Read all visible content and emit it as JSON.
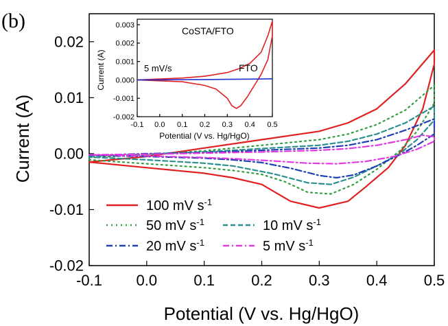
{
  "panel_label": "(b)",
  "chart_data": [
    {
      "type": "line",
      "title": "",
      "xlabel": "Potential (V vs. Hg/HgO)",
      "ylabel": "Current (A)",
      "xlim": [
        -0.1,
        0.5
      ],
      "ylim": [
        -0.02,
        0.025
      ],
      "x_ticks": [
        -0.1,
        0.0,
        0.1,
        0.2,
        0.3,
        0.4,
        0.5
      ],
      "x_tick_labels": [
        "-0.1",
        "0.0",
        "0.1",
        "0.2",
        "0.3",
        "0.4",
        "0.5"
      ],
      "y_ticks": [
        -0.02,
        -0.01,
        0.0,
        0.01,
        0.02
      ],
      "y_tick_labels": [
        "-0.02",
        "-0.01",
        "0.00",
        "0.01",
        "0.02"
      ],
      "legend": {
        "placement": "bottom-left",
        "entries": [
          {
            "series": 0,
            "label": "100 mV s",
            "sup": "-1"
          },
          {
            "series": 1,
            "label": "50 mV s",
            "sup": "-1"
          },
          {
            "series": 2,
            "label": "10 mV s",
            "sup": "-1"
          },
          {
            "series": 3,
            "label": "20 mV s",
            "sup": "-1"
          },
          {
            "series": 4,
            "label": "5 mV s",
            "sup": "-1"
          }
        ]
      },
      "series": [
        {
          "name": "100 mV s-1",
          "color": "#e02020",
          "dash": "solid",
          "x": [
            -0.1,
            0.0,
            0.1,
            0.2,
            0.3,
            0.35,
            0.4,
            0.45,
            0.5,
            0.5,
            0.48,
            0.45,
            0.42,
            0.38,
            0.35,
            0.3,
            0.25,
            0.2,
            0.15,
            0.1,
            0.0,
            -0.1
          ],
          "y": [
            -0.0015,
            -0.0005,
            0.001,
            0.0025,
            0.004,
            0.0055,
            0.008,
            0.0125,
            0.0185,
            0.016,
            0.008,
            0.0015,
            -0.0025,
            -0.006,
            -0.0085,
            -0.0097,
            -0.0085,
            -0.0055,
            -0.0043,
            -0.0035,
            -0.0025,
            -0.0015
          ]
        },
        {
          "name": "50 mV s-1",
          "color": "#2e9e3e",
          "dash": "dotted",
          "x": [
            -0.1,
            0.0,
            0.1,
            0.2,
            0.3,
            0.35,
            0.4,
            0.45,
            0.5,
            0.5,
            0.47,
            0.44,
            0.4,
            0.36,
            0.32,
            0.28,
            0.24,
            0.2,
            0.15,
            0.1,
            0.0,
            -0.1
          ],
          "y": [
            -0.0007,
            -0.0002,
            0.0005,
            0.0015,
            0.0025,
            0.0035,
            0.0052,
            0.0078,
            0.0122,
            0.009,
            0.004,
            0.0005,
            -0.0028,
            -0.0055,
            -0.0072,
            -0.0069,
            -0.005,
            -0.0037,
            -0.003,
            -0.0025,
            -0.0018,
            -0.0011
          ]
        },
        {
          "name": "10 mV s-1",
          "color": "#2a8f8f",
          "dash": "dashed",
          "x": [
            -0.1,
            0.0,
            0.1,
            0.2,
            0.3,
            0.35,
            0.4,
            0.45,
            0.5,
            0.5,
            0.47,
            0.44,
            0.4,
            0.36,
            0.32,
            0.28,
            0.22,
            0.15,
            0.1,
            0.0,
            -0.1
          ],
          "y": [
            -0.0004,
            -0.0001,
            0.0003,
            0.0009,
            0.0015,
            0.0022,
            0.0035,
            0.0055,
            0.0085,
            0.006,
            0.0025,
            0.0,
            -0.0022,
            -0.0042,
            -0.0055,
            -0.0052,
            -0.0036,
            -0.0022,
            -0.0017,
            -0.0011,
            -0.0006
          ]
        },
        {
          "name": "20 mV s-1",
          "color": "#1f3fb5",
          "dash": "dashdot",
          "x": [
            -0.1,
            0.0,
            0.1,
            0.2,
            0.3,
            0.35,
            0.4,
            0.45,
            0.5,
            0.5,
            0.47,
            0.44,
            0.4,
            0.36,
            0.33,
            0.3,
            0.25,
            0.2,
            0.15,
            0.1,
            0.0,
            -0.1
          ],
          "y": [
            -0.0003,
            0.0,
            0.0002,
            0.0006,
            0.001,
            0.0015,
            0.0025,
            0.0042,
            0.0062,
            0.0035,
            0.0015,
            -0.0002,
            -0.0022,
            -0.0038,
            -0.0043,
            -0.0039,
            -0.0026,
            -0.0016,
            -0.0011,
            -0.0008,
            -0.0005,
            -0.0003
          ]
        },
        {
          "name": "5 mV s-1",
          "color": "#e03ae0",
          "dash": "dashdot",
          "x": [
            -0.1,
            0.0,
            0.1,
            0.2,
            0.3,
            0.35,
            0.4,
            0.45,
            0.48,
            0.5,
            0.5,
            0.47,
            0.43,
            0.38,
            0.33,
            0.28,
            0.22,
            0.15,
            0.1,
            0.0,
            -0.1
          ],
          "y": [
            -0.0002,
            -0.0001,
            0.0001,
            0.0003,
            0.0006,
            0.0009,
            0.0015,
            0.0025,
            0.0033,
            0.003,
            0.0022,
            0.0008,
            -0.0005,
            -0.0014,
            -0.0018,
            -0.0017,
            -0.0013,
            -0.0009,
            -0.0007,
            -0.0004,
            -0.0002
          ]
        }
      ]
    },
    {
      "type": "line",
      "title": "",
      "xlabel": "Potential (V vs. Hg/HgO)",
      "ylabel": "Current (A)",
      "xlim": [
        -0.1,
        0.5
      ],
      "ylim": [
        -0.002,
        0.0033
      ],
      "x_ticks": [
        -0.1,
        0.0,
        0.1,
        0.2,
        0.3,
        0.4,
        0.5
      ],
      "x_tick_labels": [
        "-0.1",
        "0.0",
        "0.1",
        "0.2",
        "0.3",
        "0.4",
        "0.5"
      ],
      "y_ticks": [
        -0.002,
        -0.001,
        0.0,
        0.001,
        0.002,
        0.003
      ],
      "y_tick_labels": [
        "-0.002",
        "-0.001",
        "0.000",
        "0.001",
        "0.002",
        "0.003"
      ],
      "annotations": [
        "5 mV/s"
      ],
      "series": [
        {
          "name": "CoSTA/FTO",
          "color": "#e02020",
          "dash": "solid",
          "x": [
            -0.1,
            0.0,
            0.1,
            0.2,
            0.3,
            0.35,
            0.4,
            0.45,
            0.48,
            0.5,
            0.5,
            0.48,
            0.45,
            0.42,
            0.39,
            0.36,
            0.34,
            0.32,
            0.3,
            0.25,
            0.2,
            0.1,
            0.0,
            -0.1
          ],
          "y": [
            0.0,
            5e-05,
            0.0001,
            0.0002,
            0.0004,
            0.0006,
            0.0009,
            0.0015,
            0.0024,
            0.0032,
            0.0024,
            0.0011,
            0.0003,
            -0.0003,
            -0.0009,
            -0.0014,
            -0.00155,
            -0.0014,
            -0.001,
            -0.0005,
            -0.0003,
            -0.0001,
            -5e-05,
            0.0
          ]
        },
        {
          "name": "FTO",
          "color": "#1f2fd0",
          "dash": "solid",
          "x": [
            -0.1,
            0.0,
            0.1,
            0.2,
            0.3,
            0.4,
            0.5
          ],
          "y": [
            0.0,
            0.0,
            1e-05,
            2e-05,
            3e-05,
            4e-05,
            6e-05
          ]
        }
      ]
    }
  ]
}
